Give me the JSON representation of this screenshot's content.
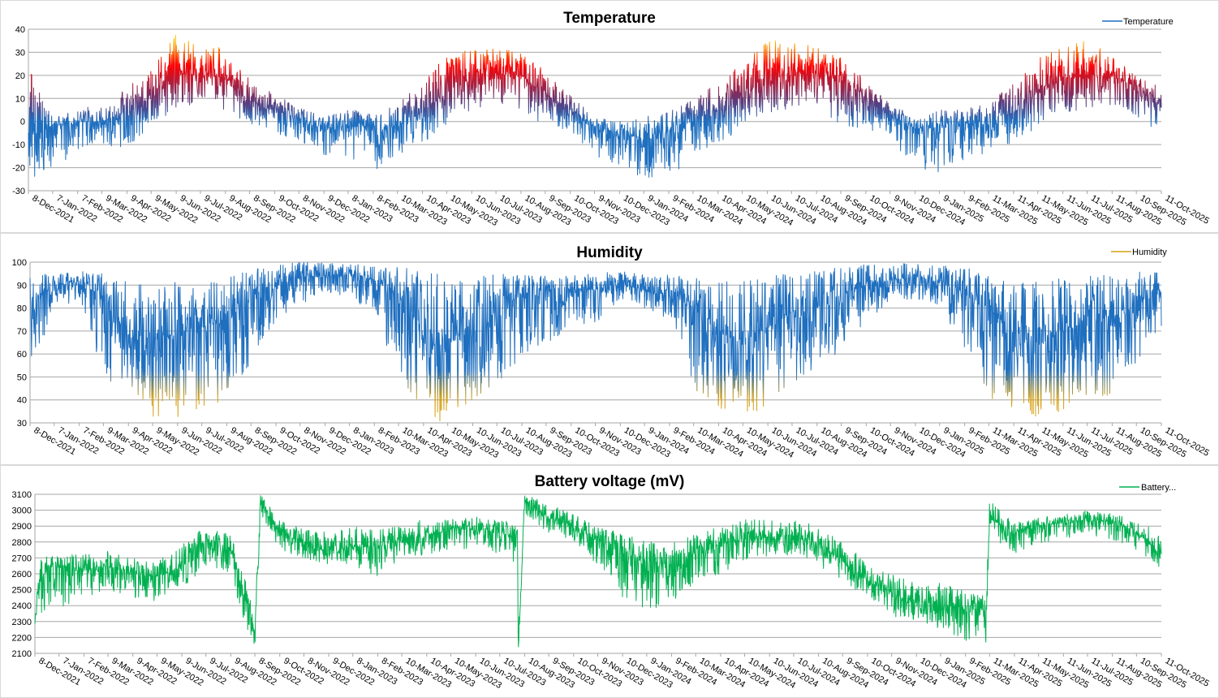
{
  "chart_data": [
    {
      "type": "line",
      "title": "Temperature",
      "legend": "top-right",
      "legend_label": "Temperature",
      "color_low": "#1f6fbf",
      "color_mid": "#5b3a7a",
      "color_high": "#ff0000",
      "color_peak": "#ffc000",
      "ylim": [
        -30,
        40
      ],
      "yticks": [
        "40",
        "30",
        "20",
        "10",
        "0",
        "-10",
        "-20",
        "-30"
      ],
      "ytick_values": [
        40,
        30,
        20,
        10,
        0,
        -10,
        -20,
        -30
      ],
      "grid": true,
      "xlim": [
        "2021-12-08",
        "2025-10-11"
      ],
      "xticks": [
        "8-Dec-2021",
        "7-Jan-2022",
        "7-Feb-2022",
        "9-Mar-2022",
        "9-Apr-2022",
        "9-May-2022",
        "9-Jun-2022",
        "9-Jul-2022",
        "9-Aug-2022",
        "8-Sep-2022",
        "9-Oct-2022",
        "8-Nov-2022",
        "9-Dec-2022",
        "8-Jan-2023",
        "8-Feb-2023",
        "10-Mar-2023",
        "10-Apr-2023",
        "10-May-2023",
        "10-Jun-2023",
        "10-Jul-2023",
        "10-Aug-2023",
        "9-Sep-2023",
        "10-Oct-2023",
        "9-Nov-2023",
        "10-Dec-2023",
        "9-Jan-2024",
        "9-Feb-2024",
        "10-Mar-2024",
        "10-Apr-2024",
        "10-May-2024",
        "10-Jun-2024",
        "10-Jul-2024",
        "10-Aug-2024",
        "9-Sep-2024",
        "10-Oct-2024",
        "9-Nov-2024",
        "10-Dec-2024",
        "9-Jan-2025",
        "9-Feb-2025",
        "11-Mar-2025",
        "11-Apr-2025",
        "11-May-2025",
        "11-Jun-2025",
        "11-Jul-2025",
        "11-Aug-2025",
        "10-Sep-2025",
        "11-Oct-2025"
      ],
      "series": [
        {
          "name": "Temperature",
          "x": [
            "2021-12-08",
            "2022-01-07",
            "2022-02-07",
            "2022-03-09",
            "2022-04-09",
            "2022-05-09",
            "2022-06-09",
            "2022-07-09",
            "2022-08-09",
            "2022-09-08",
            "2022-10-09",
            "2022-11-08",
            "2022-12-09",
            "2023-01-08",
            "2023-02-08",
            "2023-03-10",
            "2023-04-10",
            "2023-05-10",
            "2023-06-10",
            "2023-07-10",
            "2023-08-10",
            "2023-09-09",
            "2023-10-10",
            "2023-11-09",
            "2023-12-10",
            "2024-01-09",
            "2024-02-09",
            "2024-03-10",
            "2024-04-10",
            "2024-05-10",
            "2024-06-10",
            "2024-07-10",
            "2024-08-10",
            "2024-09-09",
            "2024-10-10",
            "2024-11-09",
            "2024-12-10",
            "2025-01-09",
            "2025-02-09",
            "2025-03-11",
            "2025-04-11",
            "2025-05-11",
            "2025-06-11",
            "2025-07-11",
            "2025-08-11",
            "2025-09-10",
            "2025-10-11"
          ],
          "mean": [
            -5,
            -2,
            0,
            0,
            4,
            10,
            21,
            20,
            19,
            9,
            6,
            1,
            -3,
            -2,
            -3,
            -2,
            4,
            13,
            20,
            21,
            20,
            12,
            5,
            -2,
            -5,
            -8,
            -4,
            0,
            5,
            11,
            20,
            21,
            21,
            19,
            10,
            3,
            -3,
            -3,
            -1,
            0,
            4,
            12,
            19,
            20,
            20,
            15,
            8
          ],
          "min": [
            -26,
            -22,
            -15,
            -10,
            -12,
            -3,
            6,
            7,
            5,
            -2,
            -5,
            -8,
            -15,
            -15,
            -22,
            -15,
            -10,
            -1,
            5,
            6,
            4,
            -2,
            -5,
            -15,
            -20,
            -26,
            -25,
            -15,
            -10,
            -3,
            4,
            5,
            5,
            -2,
            -3,
            -8,
            -20,
            -22,
            -20,
            -12,
            -10,
            -3,
            4,
            5,
            5,
            0,
            -4
          ],
          "max": [
            25,
            2,
            5,
            8,
            15,
            22,
            38,
            33,
            32,
            18,
            12,
            6,
            2,
            6,
            3,
            8,
            18,
            29,
            32,
            32,
            30,
            22,
            12,
            2,
            0,
            2,
            5,
            10,
            18,
            25,
            36,
            35,
            32,
            28,
            18,
            8,
            2,
            5,
            6,
            8,
            18,
            28,
            35,
            36,
            28,
            20,
            15
          ]
        }
      ]
    },
    {
      "type": "line",
      "title": "Humidity",
      "legend": "top-right",
      "legend_label": "Humidity",
      "color_low": "#d4a017",
      "color_high": "#1f6fbf",
      "ylim": [
        30,
        100
      ],
      "yticks": [
        "100",
        "90",
        "80",
        "70",
        "60",
        "50",
        "40",
        "30"
      ],
      "ytick_values": [
        100,
        90,
        80,
        70,
        60,
        50,
        40,
        30
      ],
      "grid": true,
      "xlim": [
        "2021-12-08",
        "2025-10-11"
      ],
      "xticks": [
        "8-Dec-2021",
        "7-Jan-2022",
        "7-Feb-2022",
        "9-Mar-2022",
        "9-Apr-2022",
        "9-May-2022",
        "9-Jun-2022",
        "9-Jul-2022",
        "9-Aug-2022",
        "8-Sep-2022",
        "9-Oct-2022",
        "8-Nov-2022",
        "9-Dec-2022",
        "8-Jan-2023",
        "8-Feb-2023",
        "10-Mar-2023",
        "10-Apr-2023",
        "10-May-2023",
        "10-Jun-2023",
        "10-Jul-2023",
        "10-Aug-2023",
        "9-Sep-2023",
        "10-Oct-2023",
        "9-Nov-2023",
        "10-Dec-2023",
        "9-Jan-2024",
        "9-Feb-2024",
        "10-Mar-2024",
        "10-Apr-2024",
        "10-May-2024",
        "10-Jun-2024",
        "10-Jul-2024",
        "10-Aug-2024",
        "9-Sep-2024",
        "10-Oct-2024",
        "9-Nov-2024",
        "10-Dec-2024",
        "9-Jan-2025",
        "9-Feb-2025",
        "11-Mar-2025",
        "11-Apr-2025",
        "11-May-2025",
        "11-Jun-2025",
        "11-Jul-2025",
        "11-Aug-2025",
        "10-Sep-2025",
        "11-Oct-2025"
      ],
      "series": [
        {
          "name": "Humidity",
          "x": [
            "2021-12-08",
            "2022-01-07",
            "2022-02-07",
            "2022-03-09",
            "2022-04-09",
            "2022-05-09",
            "2022-06-09",
            "2022-07-09",
            "2022-08-09",
            "2022-09-08",
            "2022-10-09",
            "2022-11-08",
            "2022-12-09",
            "2023-01-08",
            "2023-02-08",
            "2023-03-10",
            "2023-04-10",
            "2023-05-10",
            "2023-06-10",
            "2023-07-10",
            "2023-08-10",
            "2023-09-09",
            "2023-10-10",
            "2023-11-09",
            "2023-12-10",
            "2024-01-09",
            "2024-02-09",
            "2024-03-10",
            "2024-04-10",
            "2024-05-10",
            "2024-06-10",
            "2024-07-10",
            "2024-08-10",
            "2024-09-09",
            "2024-10-10",
            "2024-11-09",
            "2024-12-10",
            "2025-01-09",
            "2025-02-09",
            "2025-03-11",
            "2025-04-11",
            "2025-05-11",
            "2025-06-11",
            "2025-07-11",
            "2025-08-11",
            "2025-09-10",
            "2025-10-11"
          ],
          "mean": [
            82,
            90,
            91,
            85,
            68,
            67,
            68,
            72,
            74,
            85,
            90,
            93,
            94,
            94,
            92,
            86,
            70,
            65,
            72,
            78,
            86,
            88,
            88,
            88,
            90,
            88,
            85,
            82,
            70,
            64,
            72,
            78,
            80,
            86,
            90,
            92,
            94,
            92,
            86,
            80,
            66,
            64,
            70,
            74,
            74,
            80,
            88
          ],
          "min": [
            40,
            82,
            82,
            50,
            42,
            32,
            32,
            35,
            40,
            55,
            75,
            82,
            85,
            86,
            75,
            50,
            32,
            30,
            40,
            45,
            60,
            62,
            72,
            72,
            82,
            80,
            75,
            45,
            32,
            30,
            38,
            45,
            55,
            60,
            75,
            82,
            84,
            80,
            60,
            40,
            35,
            32,
            35,
            38,
            40,
            55,
            70
          ],
          "max": [
            95,
            95,
            96,
            95,
            92,
            92,
            92,
            92,
            94,
            97,
            99,
            100,
            100,
            99,
            99,
            98,
            96,
            94,
            94,
            95,
            95,
            94,
            94,
            95,
            96,
            95,
            95,
            94,
            92,
            93,
            94,
            95,
            96,
            98,
            99,
            100,
            100,
            99,
            98,
            96,
            92,
            92,
            93,
            94,
            95,
            96,
            97
          ]
        }
      ]
    },
    {
      "type": "line",
      "title": "Battery voltage (mV)",
      "legend": "top-right",
      "legend_label": "Battery...",
      "color": "#00b050",
      "ylim": [
        2100,
        3100
      ],
      "yticks": [
        "3100",
        "3000",
        "2900",
        "2800",
        "2700",
        "2600",
        "2500",
        "2400",
        "2300",
        "2200",
        "2100"
      ],
      "ytick_values": [
        3100,
        3000,
        2900,
        2800,
        2700,
        2600,
        2500,
        2400,
        2300,
        2200,
        2100
      ],
      "grid": true,
      "xlim": [
        "2021-12-08",
        "2025-10-11"
      ],
      "xticks": [
        "8-Dec-2021",
        "7-Jan-2022",
        "7-Feb-2022",
        "9-Mar-2022",
        "9-Apr-2022",
        "9-May-2022",
        "9-Jun-2022",
        "9-Jul-2022",
        "9-Aug-2022",
        "8-Sep-2022",
        "9-Oct-2022",
        "8-Nov-2022",
        "9-Dec-2022",
        "8-Jan-2023",
        "8-Feb-2023",
        "10-Mar-2023",
        "10-Apr-2023",
        "10-May-2023",
        "10-Jun-2023",
        "10-Jul-2023",
        "10-Aug-2023",
        "9-Sep-2023",
        "10-Oct-2023",
        "9-Nov-2023",
        "10-Dec-2023",
        "9-Jan-2024",
        "9-Feb-2024",
        "10-Mar-2024",
        "10-Apr-2024",
        "10-May-2024",
        "10-Jun-2024",
        "10-Jul-2024",
        "10-Aug-2024",
        "9-Sep-2024",
        "10-Oct-2024",
        "9-Nov-2024",
        "10-Dec-2024",
        "9-Jan-2025",
        "9-Feb-2025",
        "11-Mar-2025",
        "11-Apr-2025",
        "11-May-2025",
        "11-Jun-2025",
        "11-Jul-2025",
        "11-Aug-2025",
        "10-Sep-2025",
        "11-Oct-2025"
      ],
      "series": [
        {
          "name": "Battery...",
          "x": [
            "2021-12-08",
            "2021-12-15",
            "2022-01-07",
            "2022-02-07",
            "2022-03-09",
            "2022-04-09",
            "2022-05-09",
            "2022-06-09",
            "2022-07-09",
            "2022-08-09",
            "2022-08-25",
            "2022-09-08",
            "2022-09-15",
            "2022-10-09",
            "2022-11-08",
            "2022-12-09",
            "2023-01-08",
            "2023-02-08",
            "2023-03-10",
            "2023-04-10",
            "2023-05-10",
            "2023-06-10",
            "2023-07-10",
            "2023-08-01",
            "2023-08-02",
            "2023-08-10",
            "2023-09-09",
            "2023-10-10",
            "2023-11-09",
            "2023-12-10",
            "2024-01-09",
            "2024-02-09",
            "2024-03-10",
            "2024-04-10",
            "2024-05-10",
            "2024-06-10",
            "2024-07-10",
            "2024-08-10",
            "2024-09-09",
            "2024-10-10",
            "2024-11-09",
            "2024-12-10",
            "2025-01-09",
            "2025-02-09",
            "2025-03-05",
            "2025-03-06",
            "2025-03-11",
            "2025-04-11",
            "2025-05-11",
            "2025-06-11",
            "2025-07-11",
            "2025-08-11",
            "2025-09-10",
            "2025-10-11"
          ],
          "mean": [
            2300,
            2640,
            2640,
            2630,
            2640,
            2620,
            2580,
            2640,
            2800,
            2750,
            2480,
            2250,
            3050,
            2860,
            2790,
            2740,
            2770,
            2770,
            2800,
            2840,
            2880,
            2880,
            2860,
            2810,
            2110,
            3050,
            2950,
            2900,
            2810,
            2760,
            2650,
            2640,
            2720,
            2780,
            2820,
            2830,
            2840,
            2790,
            2680,
            2560,
            2480,
            2430,
            2400,
            2390,
            2380,
            2150,
            2950,
            2860,
            2900,
            2920,
            2940,
            2930,
            2860,
            2730
          ],
          "min": [
            2280,
            2350,
            2380,
            2450,
            2500,
            2450,
            2400,
            2500,
            2650,
            2600,
            2300,
            2120,
            2950,
            2750,
            2700,
            2650,
            2650,
            2580,
            2650,
            2700,
            2750,
            2760,
            2720,
            2650,
            2100,
            2950,
            2850,
            2800,
            2650,
            2450,
            2350,
            2380,
            2550,
            2600,
            2680,
            2700,
            2720,
            2650,
            2550,
            2450,
            2330,
            2300,
            2250,
            2170,
            2230,
            2100,
            2850,
            2700,
            2780,
            2820,
            2850,
            2800,
            2750,
            2620
          ],
          "max": [
            2480,
            2700,
            2720,
            2720,
            2750,
            2700,
            2680,
            2780,
            2900,
            2850,
            2600,
            2350,
            3100,
            2940,
            2880,
            2860,
            2900,
            2880,
            2900,
            2950,
            2950,
            2960,
            2950,
            2900,
            2200,
            3100,
            3040,
            2980,
            2900,
            2860,
            2800,
            2800,
            2850,
            2900,
            2940,
            2960,
            2950,
            2900,
            2800,
            2680,
            2600,
            2540,
            2550,
            2500,
            2480,
            2300,
            3060,
            2920,
            2960,
            2980,
            3000,
            2980,
            2940,
            2850
          ]
        }
      ]
    }
  ]
}
